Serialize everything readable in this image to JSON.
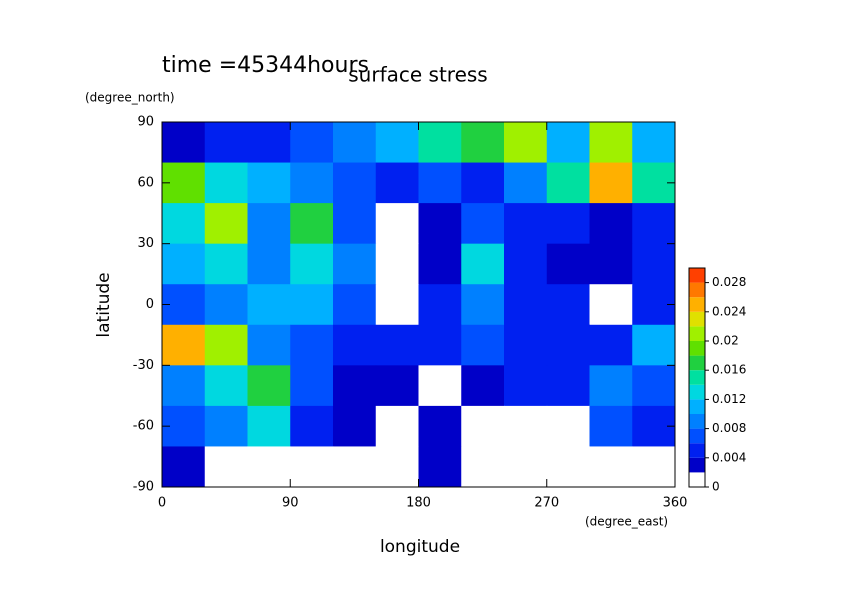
{
  "chart_data": {
    "type": "contour",
    "title": "surface stress",
    "subtitle": "time =45344hours",
    "xlabel": "longitude",
    "ylabel": "latitude",
    "xunit": "(degree_east)",
    "yunit": "(degree_north)",
    "xlim": [
      0,
      360
    ],
    "ylim": [
      -90,
      90
    ],
    "xticks": [
      0,
      90,
      180,
      270,
      360
    ],
    "yticks": [
      -90,
      -60,
      -30,
      0,
      30,
      60,
      90
    ],
    "x": [
      15,
      45,
      75,
      105,
      135,
      165,
      195,
      225,
      255,
      285,
      315,
      345
    ],
    "y": [
      80,
      60,
      40,
      20,
      0,
      -20,
      -40,
      -60,
      -80
    ],
    "z": [
      [
        0.003,
        0.004,
        0.004,
        0.006,
        0.008,
        0.01,
        0.014,
        0.016,
        0.02,
        0.01,
        0.02,
        0.01
      ],
      [
        0.018,
        0.012,
        0.01,
        0.008,
        0.006,
        0.004,
        0.006,
        0.004,
        0.008,
        0.014,
        0.024,
        0.014
      ],
      [
        0.012,
        0.02,
        0.008,
        0.016,
        0.006,
        0,
        0.002,
        0.006,
        0.004,
        0.004,
        0.002,
        0.004
      ],
      [
        0.01,
        0.012,
        0.008,
        0.012,
        0.008,
        0,
        0.003,
        0.012,
        0.004,
        0.003,
        0.002,
        0.004
      ],
      [
        0.006,
        0.008,
        0.01,
        0.01,
        0.006,
        0,
        0.004,
        0.008,
        0.004,
        0.004,
        0,
        0.004
      ],
      [
        0.024,
        0.02,
        0.008,
        0.006,
        0.004,
        0.004,
        0.004,
        0.006,
        0.004,
        0.004,
        0.004,
        0.01
      ],
      [
        0.008,
        0.012,
        0.016,
        0.006,
        0.003,
        0.002,
        0,
        0.002,
        0.004,
        0.004,
        0.008,
        0.006
      ],
      [
        0.006,
        0.008,
        0.012,
        0.004,
        0.002,
        0,
        0.003,
        0,
        0,
        0,
        0.006,
        0.004
      ],
      [
        0.002,
        0,
        0,
        0,
        0,
        0,
        0.002,
        0,
        0,
        0,
        0,
        0
      ]
    ],
    "levels": [
      0.002,
      0.004,
      0.006,
      0.008,
      0.01,
      0.012,
      0.014,
      0.016,
      0.018,
      0.02,
      0.022,
      0.024,
      0.026,
      0.028,
      0.03
    ],
    "colors": [
      "#0000c8",
      "#0020f0",
      "#0050ff",
      "#0080ff",
      "#00b0ff",
      "#00d8e0",
      "#00e0a0",
      "#20d040",
      "#60e000",
      "#a0f000",
      "#e0e000",
      "#ffb000",
      "#ff7800",
      "#ff4000"
    ],
    "below_color": "#ffffff",
    "colorbar_lim": [
      0,
      0.03
    ],
    "colorbar_ticks": [
      0,
      0.004,
      0.008,
      0.012,
      0.016,
      0.02,
      0.024,
      0.028
    ]
  }
}
